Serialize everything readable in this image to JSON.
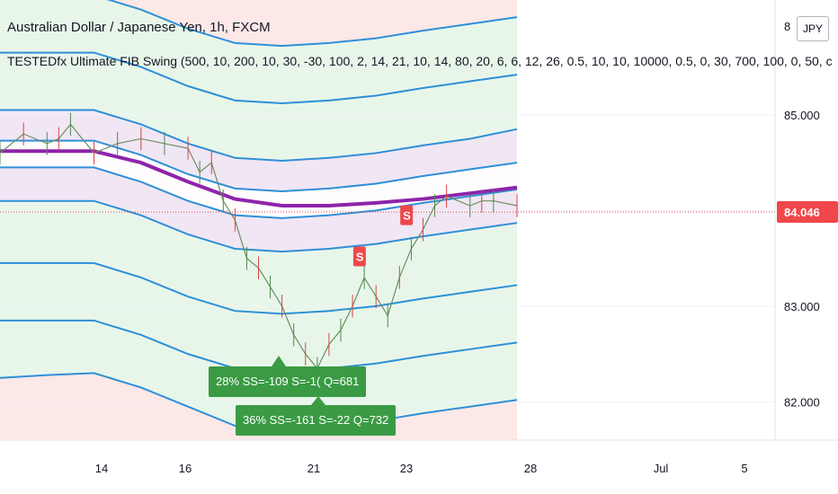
{
  "header": {
    "title": "Australian Dollar / Japanese Yen, 1h, FXCM",
    "study": "TESTEDfx Ultimate FIB Swing (500, 10, 200, 10, 30, -30, 100, 2, 14, 21, 10, 14, 80, 20, 6, 6, 12, 26, 0.5, 10, 10, 10000, 0.5, 0, 30, 700, 100, 0, 50, c"
  },
  "currency_button": "JPY",
  "colors": {
    "band_line": "#2e8fd8",
    "midline": "#8e24aa",
    "zone_green": "#e6f7ea",
    "zone_purple": "#efe6f5",
    "zone_red": "#fde8e8",
    "price_tag": "#f0474b",
    "signal": "#f0474b",
    "note": "#3a9b44"
  },
  "chart_data": {
    "type": "line",
    "title": "Australian Dollar / Japanese Yen, 1h, FXCM",
    "x_axis_ticks": [
      "14",
      "16",
      "21",
      "23",
      "28",
      "Jul",
      "5"
    ],
    "y_axis_ticks": [
      "85.000",
      "83.000",
      "82.000"
    ],
    "y_top_label_partial": "8",
    "ylim": [
      81.6,
      86.2
    ],
    "last_price": "84.046",
    "series": [
      {
        "name": "",
        "points": [
          [
            0,
            85.05
          ],
          [
            2,
            85.05
          ],
          [
            4,
            85.05
          ],
          [
            6,
            84.9
          ],
          [
            8,
            84.7
          ],
          [
            10,
            84.55
          ],
          [
            12,
            84.52
          ],
          [
            14,
            84.55
          ],
          [
            16,
            84.6
          ],
          [
            18,
            84.68
          ],
          [
            20,
            84.75
          ],
          [
            22,
            84.85
          ]
        ]
      },
      {
        "name": "",
        "points": [
          [
            0,
            85.65
          ],
          [
            2,
            85.65
          ],
          [
            4,
            85.65
          ],
          [
            6,
            85.5
          ],
          [
            8,
            85.3
          ],
          [
            10,
            85.15
          ],
          [
            12,
            85.12
          ],
          [
            14,
            85.15
          ],
          [
            16,
            85.2
          ],
          [
            18,
            85.28
          ],
          [
            20,
            85.35
          ],
          [
            22,
            85.42
          ]
        ]
      },
      {
        "name": "",
        "points": [
          [
            0,
            86.25
          ],
          [
            2,
            86.25
          ],
          [
            4,
            86.25
          ],
          [
            6,
            86.1
          ],
          [
            8,
            85.9
          ],
          [
            10,
            85.75
          ],
          [
            12,
            85.72
          ],
          [
            14,
            85.75
          ],
          [
            16,
            85.8
          ],
          [
            18,
            85.88
          ],
          [
            20,
            85.95
          ],
          [
            22,
            86.02
          ]
        ]
      },
      {
        "name": "",
        "points": [
          [
            0,
            84.73
          ],
          [
            2,
            84.73
          ],
          [
            4,
            84.73
          ],
          [
            6,
            84.58
          ],
          [
            8,
            84.38
          ],
          [
            10,
            84.23
          ],
          [
            12,
            84.2
          ],
          [
            14,
            84.23
          ],
          [
            16,
            84.28
          ],
          [
            18,
            84.36
          ],
          [
            20,
            84.43
          ],
          [
            22,
            84.5
          ]
        ]
      },
      {
        "name": "",
        "points": [
          [
            0,
            84.45
          ],
          [
            2,
            84.45
          ],
          [
            4,
            84.45
          ],
          [
            6,
            84.3
          ],
          [
            8,
            84.1
          ],
          [
            10,
            83.95
          ],
          [
            12,
            83.92
          ],
          [
            14,
            83.95
          ],
          [
            16,
            84.0
          ],
          [
            18,
            84.08
          ],
          [
            20,
            84.15
          ],
          [
            22,
            84.22
          ]
        ]
      },
      {
        "name": "",
        "points": [
          [
            0,
            84.1
          ],
          [
            2,
            84.1
          ],
          [
            4,
            84.1
          ],
          [
            6,
            83.95
          ],
          [
            8,
            83.75
          ],
          [
            10,
            83.6
          ],
          [
            12,
            83.57
          ],
          [
            14,
            83.6
          ],
          [
            16,
            83.65
          ],
          [
            18,
            83.73
          ],
          [
            20,
            83.8
          ],
          [
            22,
            83.87
          ]
        ]
      },
      {
        "name": "",
        "points": [
          [
            0,
            83.45
          ],
          [
            2,
            83.45
          ],
          [
            4,
            83.45
          ],
          [
            6,
            83.3
          ],
          [
            8,
            83.1
          ],
          [
            10,
            82.95
          ],
          [
            12,
            82.92
          ],
          [
            14,
            82.95
          ],
          [
            16,
            83.0
          ],
          [
            18,
            83.08
          ],
          [
            20,
            83.15
          ],
          [
            22,
            83.22
          ]
        ]
      },
      {
        "name": "",
        "points": [
          [
            0,
            82.85
          ],
          [
            2,
            82.85
          ],
          [
            4,
            82.85
          ],
          [
            6,
            82.7
          ],
          [
            8,
            82.5
          ],
          [
            10,
            82.35
          ],
          [
            12,
            82.32
          ],
          [
            14,
            82.35
          ],
          [
            16,
            82.4
          ],
          [
            18,
            82.48
          ],
          [
            20,
            82.55
          ],
          [
            22,
            82.62
          ]
        ]
      },
      {
        "name": "",
        "points": [
          [
            0,
            82.25
          ],
          [
            2,
            82.28
          ],
          [
            4,
            82.3
          ],
          [
            6,
            82.15
          ],
          [
            8,
            81.95
          ],
          [
            10,
            81.75
          ],
          [
            12,
            81.72
          ],
          [
            14,
            81.75
          ],
          [
            16,
            81.8
          ],
          [
            18,
            81.88
          ],
          [
            20,
            81.95
          ],
          [
            22,
            82.02
          ]
        ]
      }
    ],
    "midline": {
      "name": "",
      "points": [
        [
          0,
          84.62
        ],
        [
          2,
          84.62
        ],
        [
          4,
          84.62
        ],
        [
          6,
          84.5
        ],
        [
          8,
          84.3
        ],
        [
          10,
          84.12
        ],
        [
          12,
          84.05
        ],
        [
          14,
          84.05
        ],
        [
          16,
          84.08
        ],
        [
          18,
          84.12
        ],
        [
          20,
          84.18
        ],
        [
          22,
          84.24
        ]
      ]
    },
    "price_path": [
      [
        0,
        84.6
      ],
      [
        1,
        84.8
      ],
      [
        2,
        84.7
      ],
      [
        2.5,
        84.75
      ],
      [
        3,
        84.9
      ],
      [
        4,
        84.6
      ],
      [
        5,
        84.7
      ],
      [
        6,
        84.75
      ],
      [
        7,
        84.7
      ],
      [
        8,
        84.65
      ],
      [
        8.5,
        84.4
      ],
      [
        9,
        84.5
      ],
      [
        9.5,
        84.1
      ],
      [
        10,
        83.9
      ],
      [
        10.5,
        83.5
      ],
      [
        11,
        83.4
      ],
      [
        11.5,
        83.2
      ],
      [
        12,
        83.0
      ],
      [
        12.5,
        82.7
      ],
      [
        13,
        82.5
      ],
      [
        13.5,
        82.35
      ],
      [
        14,
        82.6
      ],
      [
        14.5,
        82.75
      ],
      [
        15,
        83.0
      ],
      [
        15.5,
        83.3
      ],
      [
        16,
        83.1
      ],
      [
        16.5,
        82.9
      ],
      [
        17,
        83.3
      ],
      [
        17.5,
        83.6
      ],
      [
        18,
        83.8
      ],
      [
        18.5,
        84.05
      ],
      [
        19,
        84.15
      ],
      [
        20,
        84.05
      ],
      [
        20.5,
        84.1
      ],
      [
        21,
        84.1
      ],
      [
        22,
        84.05
      ]
    ],
    "signals": [
      {
        "label": "S",
        "x": 15.3,
        "y": 83.52
      },
      {
        "label": "S",
        "x": 17.3,
        "y": 83.95
      }
    ],
    "annotations": [
      "28% SS=-109 S=-1( Q=681",
      "36% SS=-161 S=-22 Q=732"
    ],
    "grid": true
  }
}
